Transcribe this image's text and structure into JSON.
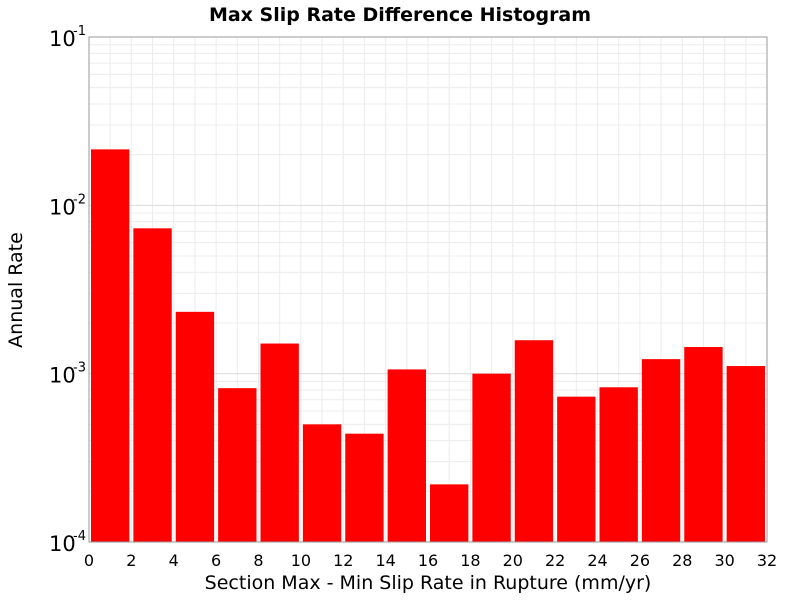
{
  "chart_data": {
    "type": "bar",
    "title": "Max Slip Rate Difference Histogram",
    "xlabel": "Section Max - Min Slip Rate in Rupture (mm/yr)",
    "ylabel": "Annual Rate",
    "xlim": [
      0,
      32
    ],
    "ylim": [
      0.0001,
      0.1
    ],
    "yscale": "log",
    "grid": true,
    "bar_color": "#ff0000",
    "bin_width": 2,
    "x": [
      1,
      3,
      5,
      7,
      9,
      11,
      13,
      15,
      17,
      19,
      21,
      23,
      25,
      27,
      29,
      31
    ],
    "values": [
      0.0215,
      0.0073,
      0.00233,
      0.00082,
      0.00151,
      0.0005,
      0.00044,
      0.00106,
      0.00022,
      0.001,
      0.00158,
      0.00073,
      0.00083,
      0.00122,
      0.00144,
      0.00111
    ],
    "xticks": [
      "0",
      "2",
      "4",
      "6",
      "8",
      "10",
      "12",
      "14",
      "16",
      "18",
      "20",
      "22",
      "24",
      "26",
      "28",
      "30",
      "32"
    ],
    "yticks": [
      {
        "base": "10",
        "exp": "-1",
        "value": 0.1
      },
      {
        "base": "10",
        "exp": "-2",
        "value": 0.01
      },
      {
        "base": "10",
        "exp": "-3",
        "value": 0.001
      },
      {
        "base": "10",
        "exp": "-4",
        "value": 0.0001
      }
    ]
  }
}
